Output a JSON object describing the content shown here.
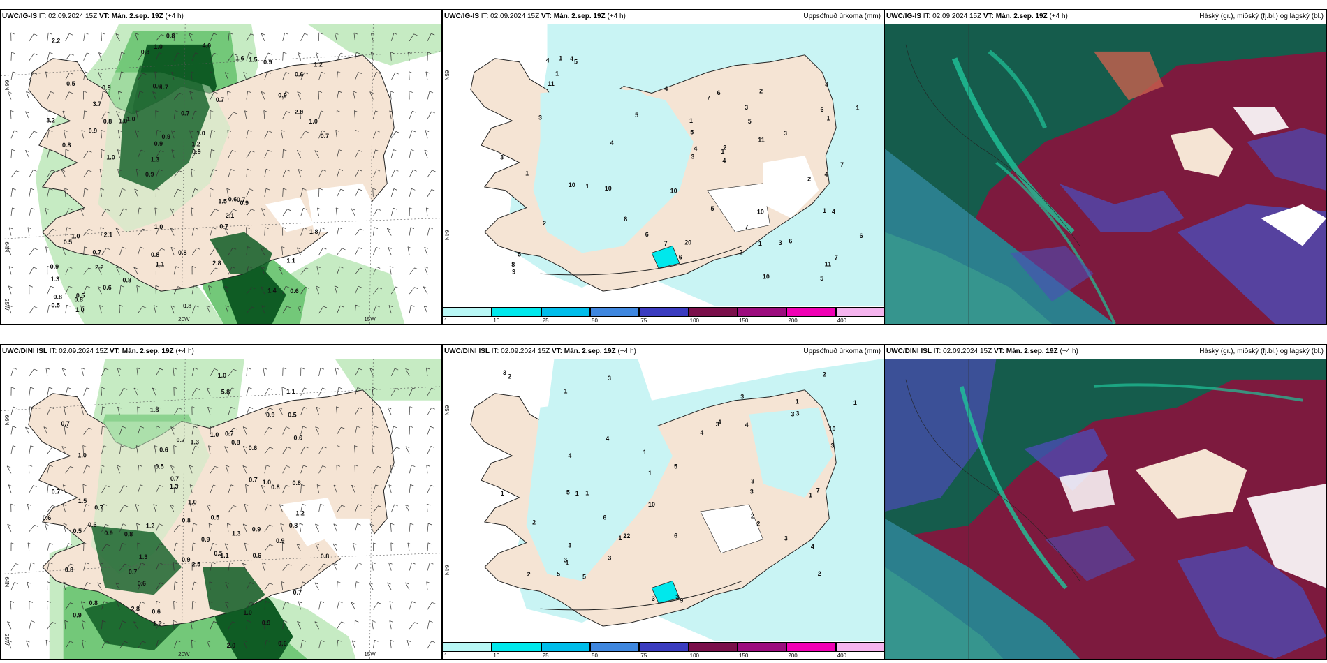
{
  "rows": [
    {
      "model": "UWC/IG-IS",
      "it": "IT: 02.09.2024 15Z",
      "vt_label": "VT:",
      "vt_value": "Mán. 2.sep. 19Z",
      "lead": "(+4 h)",
      "wind_panel": {
        "lat_ticks": [
          "66N",
          "64N",
          "25W"
        ],
        "lon_ticks": [
          "20W",
          "15W"
        ],
        "values": [
          "0.6",
          "0.8",
          "0.6",
          "0.9",
          "0.7",
          "0.5",
          "0.6",
          "0.7",
          "1.0",
          "1.0",
          "1.3",
          "2.2",
          "1.7",
          "1.0",
          "0.9",
          "0.5",
          "1.0",
          "0.7",
          "1.5",
          "2.0",
          "1.3",
          "0.8",
          "0.9",
          "0.9",
          "1.6",
          "2.1",
          "1.4",
          "1.1",
          "0.7",
          "0.8",
          "1.0",
          "0.9",
          "0.7",
          "0.6",
          "1.0",
          "1.2",
          "0.8",
          "1.1",
          "0.9",
          "0.5",
          "0.9",
          "1.2",
          "2.1",
          "2.8",
          "0.7",
          "1.0",
          "0.5",
          "0.8",
          "0.9",
          "0.8",
          "1.0",
          "3.2",
          "3.7",
          "1.5",
          "0.8",
          "4.0",
          "0.8",
          "0.9",
          "1.8",
          "1.0",
          "0.8",
          "0.6",
          "0.8",
          "0.9",
          "2.2"
        ]
      },
      "precip_panel": {
        "right_title": "Uppsöfnuð úrkoma (mm)",
        "lat_ticks": [
          "65N",
          "64N"
        ],
        "values": [
          "2",
          "2",
          "1",
          "6",
          "6",
          "6",
          "5",
          "5",
          "4",
          "5",
          "5",
          "5",
          "4",
          "6",
          "4",
          "6",
          "5",
          "6",
          "11",
          "10",
          "10",
          "2",
          "4",
          "5",
          "4",
          "3",
          "3",
          "2",
          "11",
          "11",
          "7",
          "8",
          "4",
          "1",
          "9",
          "7",
          "8",
          "10",
          "1",
          "3",
          "3",
          "4",
          "3",
          "1",
          "10",
          "7",
          "10",
          "20",
          "7",
          "1",
          "1",
          "1",
          "2",
          "7",
          "4",
          "3",
          "3",
          "1",
          "1",
          "1"
        ]
      },
      "cloud_panel": {
        "right_title": "Háský (gr.), miðský (fj.bl.) og lágský (bl.)"
      }
    },
    {
      "model": "UWC/DINI ISL",
      "it": "IT: 02.09.2024 15Z",
      "vt_label": "VT:",
      "vt_value": "Mán. 2.sep. 19Z",
      "lead": "(+4 h)",
      "wind_panel": {
        "lat_ticks": [
          "66N",
          "64N",
          "25W"
        ],
        "lon_ticks": [
          "20W",
          "15W"
        ],
        "values": [
          "0.6",
          "0.6",
          "0.5",
          "0.7",
          "0.7",
          "1.0",
          "0.8",
          "0.8",
          "0.6",
          "0.7",
          "0.8",
          "0.9",
          "0.6",
          "1.3",
          "0.5",
          "0.8",
          "0.9",
          "1.0",
          "0.7",
          "0.9",
          "1.1",
          "1.3",
          "1.0",
          "0.8",
          "1.2",
          "1.5",
          "0.9",
          "0.8",
          "1.3",
          "0.5",
          "1.1",
          "0.5",
          "0.7",
          "0.7",
          "0.6",
          "0.9",
          "0.8",
          "1.0",
          "0.9",
          "2.0",
          "1.3",
          "2.5",
          "2.8",
          "1.0",
          "1.2",
          "0.7",
          "0.6",
          "5.8",
          "1.0",
          "0.9",
          "1.3",
          "0.8",
          "0.6",
          "0.8",
          "0.5",
          "0.6",
          "1.0",
          "0.7",
          "0.9",
          "0.7",
          "0.6"
        ]
      },
      "precip_panel": {
        "right_title": "Uppsöfnuð úrkoma (mm)",
        "lat_ticks": [
          "65N",
          "64N"
        ],
        "values": [
          "2",
          "2",
          "4",
          "3",
          "2",
          "3",
          "3",
          "6",
          "4",
          "5",
          "1",
          "1",
          "1",
          "1",
          "2",
          "1",
          "1",
          "1",
          "3",
          "3",
          "4",
          "4",
          "3",
          "5",
          "10",
          "10",
          "5",
          "6",
          "2",
          "2",
          "3",
          "1",
          "1",
          "22",
          "9",
          "7",
          "4",
          "3",
          "3",
          "2",
          "3",
          "1",
          "3",
          "1",
          "5",
          "3",
          "3",
          "3",
          "3",
          "4"
        ]
      },
      "cloud_panel": {
        "right_title": "Háský (gr.), miðský (fj.bl.) og lágský (bl.)"
      }
    }
  ],
  "precip_scale": {
    "colors": [
      "#b8f7f5",
      "#00e8ec",
      "#00bdea",
      "#3f87df",
      "#3b3cc0",
      "#7a0f4a",
      "#9c0c7e",
      "#f000b4",
      "#f5b4ee"
    ],
    "labels": [
      "1",
      "10",
      "25",
      "50",
      "75",
      "100",
      "150",
      "200",
      "400"
    ]
  },
  "colors": {
    "land": "#f5e4d4",
    "precip_light": "#c9f4f4",
    "green_light": "#c6ebc3",
    "green_mid": "#73c879",
    "green_dark": "#0f5c24",
    "cloud_high_green": "#155c4c",
    "cloud_mid_red": "#7d1a3e",
    "cloud_low_blue": "#4c4cb8",
    "cloud_teal": "#1fc49a",
    "white": "#ffffff"
  }
}
